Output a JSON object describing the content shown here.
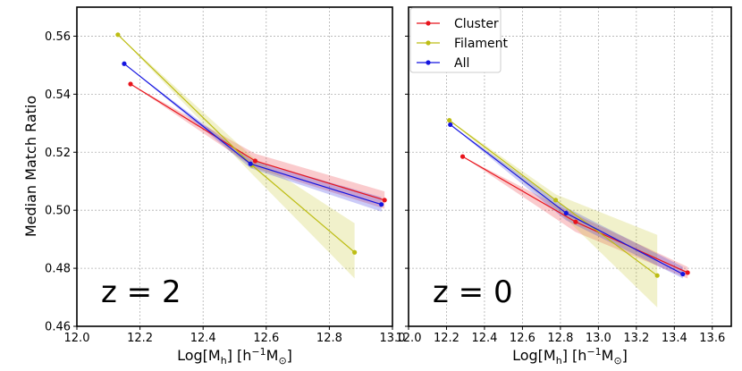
{
  "chart_data": [
    {
      "type": "line",
      "panel": "left",
      "annotation": "z = 2",
      "xlabel": "Log[M_h] [h^-1 M_sun]",
      "ylabel": "Median Match Ratio",
      "xlim": [
        12.0,
        13.0
      ],
      "ylim": [
        0.46,
        0.57
      ],
      "xticks": [
        12.0,
        12.2,
        12.4,
        12.6,
        12.8,
        13.0
      ],
      "xtick_labels": [
        "12.0",
        "12.2",
        "12.4",
        "12.6",
        "12.8",
        "13.0"
      ],
      "yticks": [
        0.46,
        0.48,
        0.5,
        0.52,
        0.54,
        0.56
      ],
      "ytick_labels": [
        "0.46",
        "0.48",
        "0.50",
        "0.52",
        "0.54",
        "0.56"
      ],
      "grid": true,
      "series": [
        {
          "name": "Cluster",
          "color": "#e8141c",
          "fill": "rgba(232,20,28,0.22)",
          "x": [
            12.17,
            12.565,
            12.975
          ],
          "y": [
            0.5435,
            0.517,
            0.5035
          ],
          "band_upper": [
            0.5435,
            0.5195,
            0.5065
          ],
          "band_lower": [
            0.5435,
            0.5145,
            0.5005
          ]
        },
        {
          "name": "Filament",
          "color": "#bdbd14",
          "fill": "rgba(189,189,20,0.22)",
          "x": [
            12.13,
            12.555,
            12.88
          ],
          "y": [
            0.5605,
            0.5155,
            0.4855
          ],
          "band_upper": [
            0.5605,
            0.5185,
            0.4955
          ],
          "band_lower": [
            0.5605,
            0.5125,
            0.4765
          ]
        },
        {
          "name": "All",
          "color": "#1414e0",
          "fill": "rgba(20,20,224,0.22)",
          "x": [
            12.15,
            12.55,
            12.965
          ],
          "y": [
            0.5505,
            0.516,
            0.502
          ],
          "band_upper": [
            0.5505,
            0.5175,
            0.5045
          ],
          "band_lower": [
            0.5505,
            0.5145,
            0.4995
          ]
        }
      ]
    },
    {
      "type": "line",
      "panel": "right",
      "annotation": "z = 0",
      "xlabel": "Log[M_h] [h^-1 M_sun]",
      "ylabel": "",
      "xlim": [
        12.0,
        13.7
      ],
      "ylim": [
        0.46,
        0.57
      ],
      "xticks": [
        12.0,
        12.2,
        12.4,
        12.6,
        12.8,
        13.0,
        13.2,
        13.4,
        13.6
      ],
      "xtick_labels": [
        "12.0",
        "12.2",
        "12.4",
        "12.6",
        "12.8",
        "13.0",
        "13.2",
        "13.4",
        "13.6"
      ],
      "yticks": [
        0.46,
        0.48,
        0.5,
        0.52,
        0.54,
        0.56
      ],
      "grid": true,
      "legend": {
        "position": "top-left",
        "entries": [
          "Cluster",
          "Filament",
          "All"
        ]
      },
      "series": [
        {
          "name": "Cluster",
          "color": "#e8141c",
          "fill": "rgba(232,20,28,0.22)",
          "x": [
            12.285,
            12.88,
            13.47
          ],
          "y": [
            0.5185,
            0.496,
            0.4785
          ],
          "band_upper": [
            0.5185,
            0.4985,
            0.4805
          ],
          "band_lower": [
            0.5185,
            0.4925,
            0.4765
          ]
        },
        {
          "name": "Filament",
          "color": "#bdbd14",
          "fill": "rgba(189,189,20,0.22)",
          "x": [
            12.215,
            12.775,
            13.31
          ],
          "y": [
            0.531,
            0.5035,
            0.4775
          ],
          "band_upper": [
            0.531,
            0.5055,
            0.4915
          ],
          "band_lower": [
            0.531,
            0.5005,
            0.4665
          ]
        },
        {
          "name": "All",
          "color": "#1414e0",
          "fill": "rgba(20,20,224,0.22)",
          "x": [
            12.22,
            12.83,
            13.445
          ],
          "y": [
            0.5295,
            0.499,
            0.478
          ],
          "band_upper": [
            0.5295,
            0.501,
            0.4805
          ],
          "band_lower": [
            0.5295,
            0.4965,
            0.4765
          ]
        }
      ]
    }
  ]
}
